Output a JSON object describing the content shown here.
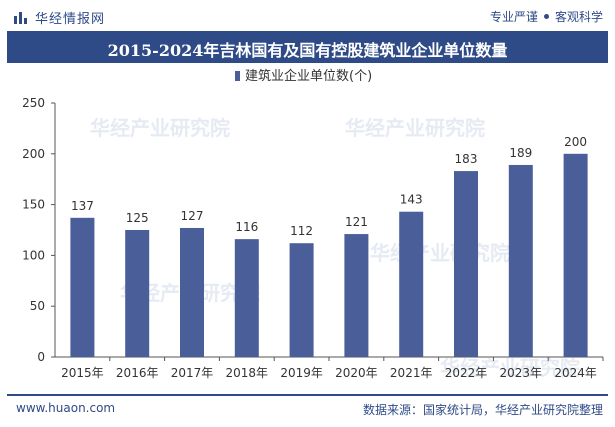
{
  "brand": {
    "name": "华经情报网",
    "slogan_left": "专业严谨",
    "slogan_right": "客观科学"
  },
  "colors": {
    "brand": "#2e4a87",
    "bar": "#4a5f99"
  },
  "chart_data": {
    "type": "bar",
    "title": "2015-2024年吉林国有及国有控股建筑业企业单位数量",
    "categories": [
      "2015年",
      "2016年",
      "2017年",
      "2018年",
      "2019年",
      "2020年",
      "2021年",
      "2022年",
      "2023年",
      "2024年"
    ],
    "series": [
      {
        "name": "建筑业企业单位数(个)",
        "values": [
          137,
          125,
          127,
          116,
          112,
          121,
          143,
          183,
          189,
          200
        ]
      }
    ],
    "ylim": [
      0,
      250
    ],
    "yticks": [
      0,
      50,
      100,
      150,
      200,
      250
    ],
    "legend": "top-center",
    "grid": false
  },
  "watermark": {
    "text_cn": "华经产业研究院",
    "text_en": "www.huaon.com"
  },
  "footer": {
    "website": "www.huaon.com",
    "source": "数据来源：国家统计局，华经产业研究院整理"
  }
}
